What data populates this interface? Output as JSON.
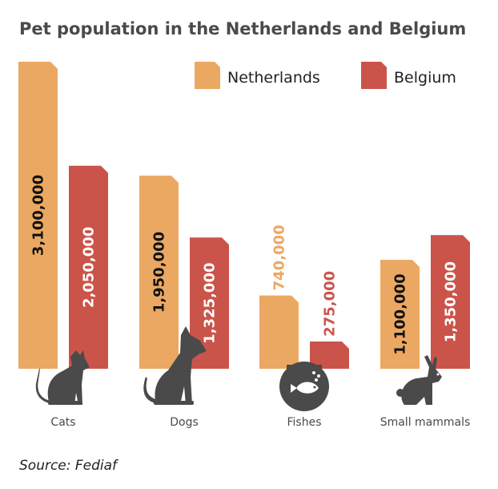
{
  "chart_data": {
    "type": "bar",
    "title": "Pet population in the Netherlands and Belgium",
    "categories": [
      "Cats",
      "Dogs",
      "Fishes",
      "Small mammals"
    ],
    "series": [
      {
        "name": "Netherlands",
        "color": "#EBA862",
        "values": [
          3100000,
          1950000,
          740000,
          1100000
        ],
        "labels": [
          "3,100,000",
          "1,950,000",
          "740,000",
          "1,100,000"
        ]
      },
      {
        "name": "Belgium",
        "color": "#CB544A",
        "values": [
          2050000,
          1325000,
          275000,
          1350000
        ],
        "labels": [
          "2,050,000",
          "1,325,000",
          "275,000",
          "1,350,000"
        ]
      }
    ],
    "category_icons": [
      "cat-icon",
      "dog-icon",
      "fishbowl-icon",
      "rabbit-icon"
    ],
    "legend_position": "top-right",
    "grid": false,
    "xlabel": "",
    "ylabel": ""
  },
  "source": "Source: Fediaf",
  "icon_color": "#4a4a4a"
}
